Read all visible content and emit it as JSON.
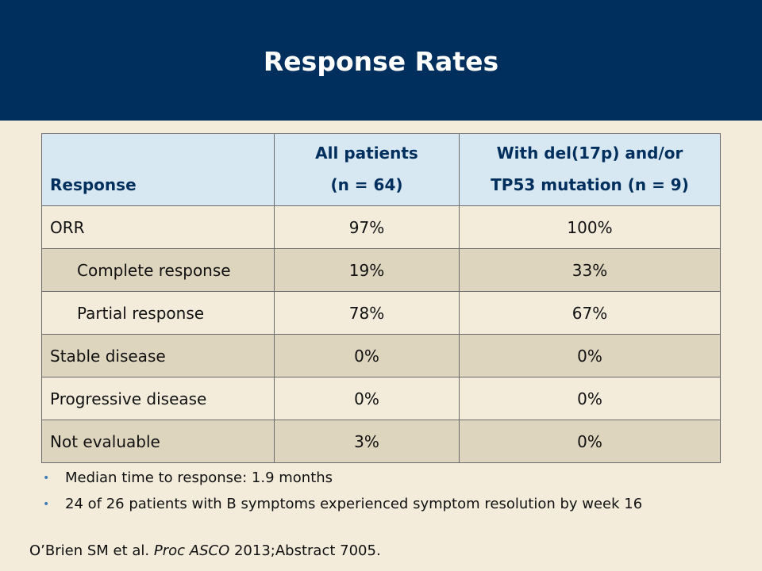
{
  "title": "Response Rates",
  "table": {
    "headers": {
      "response": "Response",
      "all_line1": "All patients",
      "all_line2": "(n = 64)",
      "del_line1": "With del(17p) and/or",
      "del_line2": "TP53 mutation (n = 9)"
    },
    "rows": [
      {
        "label": "ORR",
        "all": "97%",
        "del": "100%"
      },
      {
        "label": "Complete response",
        "all": "19%",
        "del": "33%"
      },
      {
        "label": "Partial response",
        "all": "78%",
        "del": "67%"
      },
      {
        "label": "Stable disease",
        "all": "0%",
        "del": "0%"
      },
      {
        "label": "Progressive disease",
        "all": "0%",
        "del": "0%"
      },
      {
        "label": "Not evaluable",
        "all": "3%",
        "del": "0%"
      }
    ]
  },
  "bullets": [
    "Median time to response: 1.9 months",
    "24 of 26 patients with B symptoms experienced symptom resolution by week 16"
  ],
  "citation": {
    "authors": "O’Brien SM et al.",
    "journal": "Proc ASCO",
    "detail": "2013;Abstract 7005."
  },
  "colors": {
    "header_bg": "#002f5e",
    "page_bg": "#f3ecdb",
    "table_header_bg": "#d8e8f2",
    "row_dark": "#ddd5bd",
    "bullet": "#3f7fb7"
  }
}
